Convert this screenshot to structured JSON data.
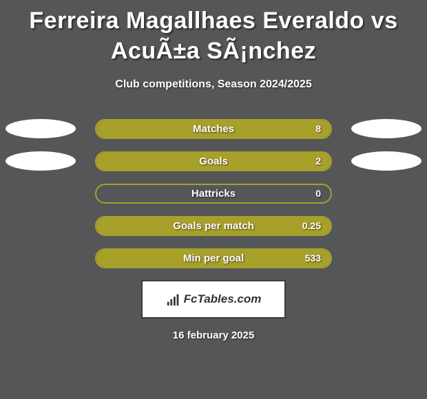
{
  "title": "Ferreira Magallhaes Everaldo vs AcuÃ±a SÃ¡nchez",
  "subtitle": "Club competitions, Season 2024/2025",
  "stats": [
    {
      "label": "Matches",
      "value_right": "8",
      "show_left_ellipse": true,
      "show_right_ellipse": true,
      "fill_side": "left",
      "fill_percent": 100,
      "fill_color": "#a7a02b",
      "border_color": "#a7a02b"
    },
    {
      "label": "Goals",
      "value_right": "2",
      "show_left_ellipse": true,
      "show_right_ellipse": true,
      "fill_side": "left",
      "fill_percent": 100,
      "fill_color": "#a7a02b",
      "border_color": "#a7a02b"
    },
    {
      "label": "Hattricks",
      "value_right": "0",
      "show_left_ellipse": false,
      "show_right_ellipse": false,
      "fill_side": "none",
      "fill_percent": 0,
      "fill_color": "#a7a02b",
      "border_color": "#a7a02b"
    },
    {
      "label": "Goals per match",
      "value_right": "0.25",
      "show_left_ellipse": false,
      "show_right_ellipse": false,
      "fill_side": "left",
      "fill_percent": 100,
      "fill_color": "#a7a02b",
      "border_color": "#a7a02b"
    },
    {
      "label": "Min per goal",
      "value_right": "533",
      "show_left_ellipse": false,
      "show_right_ellipse": false,
      "fill_side": "left",
      "fill_percent": 100,
      "fill_color": "#a7a02b",
      "border_color": "#a7a02b"
    }
  ],
  "footer": {
    "brand": "FcTables.com",
    "date": "16 february 2025"
  },
  "colors": {
    "background": "#555658",
    "text": "#ffffff",
    "bar_accent": "#a7a02b",
    "ellipse": "#ffffff"
  }
}
